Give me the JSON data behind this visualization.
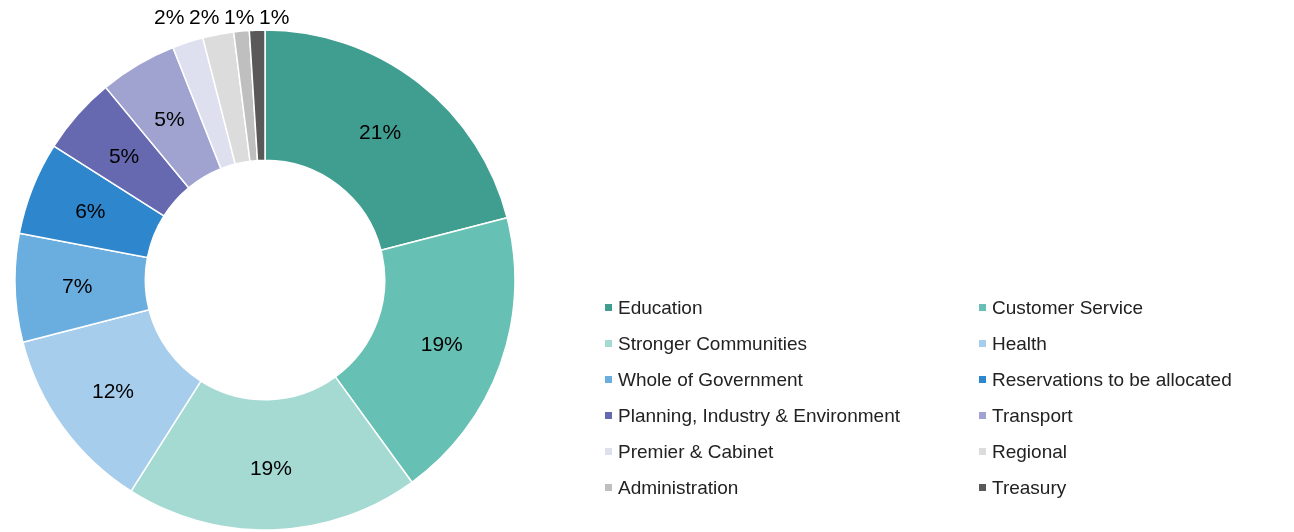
{
  "chart_data": {
    "type": "donut",
    "categories": [
      "Education",
      "Customer Service",
      "Stronger Communities",
      "Health",
      "Whole of Government",
      "Reservations to be allocated",
      "Planning, Industry & Environment",
      "Transport",
      "Premier & Cabinet",
      "Regional",
      "Administration",
      "Treasury"
    ],
    "values": [
      21,
      19,
      19,
      12,
      7,
      6,
      5,
      5,
      2,
      2,
      1,
      1
    ],
    "colors": [
      "#409e90",
      "#67c0b4",
      "#a5dad3",
      "#a6cdec",
      "#6aaee0",
      "#2e86cc",
      "#6668b0",
      "#a0a3cf",
      "#dfe0ef",
      "#dcdcdc",
      "#bfbfbf",
      "#595959"
    ],
    "value_labels": [
      "21%",
      "19%",
      "19%",
      "12%",
      "7%",
      "6%",
      "5%",
      "5%",
      "2%",
      "2%",
      "1%",
      "1%"
    ],
    "legend": "bottom right"
  }
}
